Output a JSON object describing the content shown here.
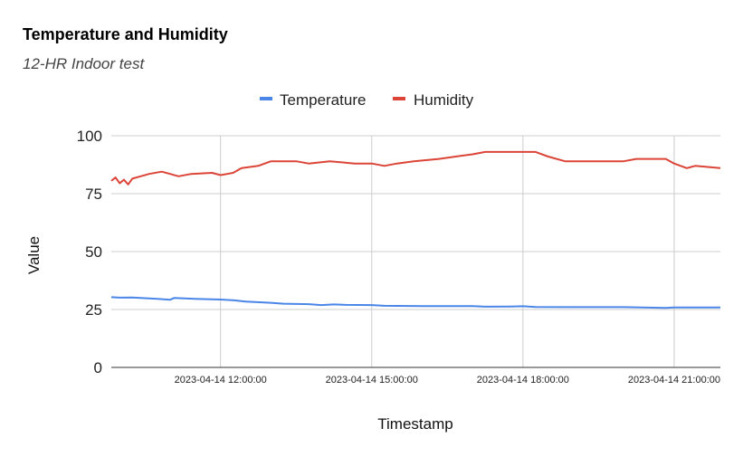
{
  "chart_data": {
    "type": "line",
    "title": "Temperature and Humidity",
    "subtitle": "12-HR Indoor test",
    "xlabel": "Timestamp",
    "ylabel": "Value",
    "ylim": [
      0,
      100
    ],
    "yticks": [
      0,
      25,
      50,
      75,
      100
    ],
    "xlim": [
      "2023-04-14 09:50:00",
      "2023-04-14 21:55:00"
    ],
    "xticks": [
      "2023-04-14 12:00:00",
      "2023-04-14 15:00:00",
      "2023-04-14 18:00:00",
      "2023-04-14 21:00:00"
    ],
    "grid": true,
    "legend_position": "top",
    "series": [
      {
        "name": "Temperature",
        "color": "#4a86e8",
        "points": [
          [
            "2023-04-14 09:50:00",
            30.3
          ],
          [
            "2023-04-14 10:00:00",
            30.1
          ],
          [
            "2023-04-14 10:15:00",
            30.2
          ],
          [
            "2023-04-14 10:30:00",
            29.9
          ],
          [
            "2023-04-14 10:45:00",
            29.6
          ],
          [
            "2023-04-14 11:00:00",
            29.2
          ],
          [
            "2023-04-14 11:05:00",
            30.0
          ],
          [
            "2023-04-14 11:30:00",
            29.6
          ],
          [
            "2023-04-14 12:00:00",
            29.3
          ],
          [
            "2023-04-14 12:15:00",
            29.0
          ],
          [
            "2023-04-14 12:30:00",
            28.4
          ],
          [
            "2023-04-14 13:00:00",
            27.9
          ],
          [
            "2023-04-14 13:15:00",
            27.5
          ],
          [
            "2023-04-14 13:45:00",
            27.3
          ],
          [
            "2023-04-14 14:00:00",
            26.9
          ],
          [
            "2023-04-14 14:15:00",
            27.2
          ],
          [
            "2023-04-14 14:30:00",
            27.0
          ],
          [
            "2023-04-14 15:00:00",
            26.9
          ],
          [
            "2023-04-14 15:15:00",
            26.6
          ],
          [
            "2023-04-14 16:00:00",
            26.5
          ],
          [
            "2023-04-14 17:00:00",
            26.5
          ],
          [
            "2023-04-14 17:15:00",
            26.2
          ],
          [
            "2023-04-14 17:45:00",
            26.3
          ],
          [
            "2023-04-14 18:00:00",
            26.4
          ],
          [
            "2023-04-14 18:15:00",
            26.1
          ],
          [
            "2023-04-14 19:00:00",
            26.0
          ],
          [
            "2023-04-14 20:00:00",
            26.0
          ],
          [
            "2023-04-14 20:50:00",
            25.7
          ],
          [
            "2023-04-14 21:00:00",
            25.9
          ],
          [
            "2023-04-14 21:55:00",
            25.9
          ]
        ]
      },
      {
        "name": "Humidity",
        "color": "#db4437",
        "points": [
          [
            "2023-04-14 09:50:00",
            80.5
          ],
          [
            "2023-04-14 09:55:00",
            82.0
          ],
          [
            "2023-04-14 10:00:00",
            79.5
          ],
          [
            "2023-04-14 10:05:00",
            81.0
          ],
          [
            "2023-04-14 10:10:00",
            79.0
          ],
          [
            "2023-04-14 10:15:00",
            81.5
          ],
          [
            "2023-04-14 10:25:00",
            82.5
          ],
          [
            "2023-04-14 10:35:00",
            83.5
          ],
          [
            "2023-04-14 10:50:00",
            84.5
          ],
          [
            "2023-04-14 11:00:00",
            83.5
          ],
          [
            "2023-04-14 11:10:00",
            82.5
          ],
          [
            "2023-04-14 11:25:00",
            83.5
          ],
          [
            "2023-04-14 11:50:00",
            84.0
          ],
          [
            "2023-04-14 12:00:00",
            83.0
          ],
          [
            "2023-04-14 12:15:00",
            84.0
          ],
          [
            "2023-04-14 12:25:00",
            86.0
          ],
          [
            "2023-04-14 12:45:00",
            87.0
          ],
          [
            "2023-04-14 13:00:00",
            89.0
          ],
          [
            "2023-04-14 13:30:00",
            89.0
          ],
          [
            "2023-04-14 13:45:00",
            88.0
          ],
          [
            "2023-04-14 14:10:00",
            89.0
          ],
          [
            "2023-04-14 14:40:00",
            88.0
          ],
          [
            "2023-04-14 15:00:00",
            88.0
          ],
          [
            "2023-04-14 15:15:00",
            87.0
          ],
          [
            "2023-04-14 15:30:00",
            88.0
          ],
          [
            "2023-04-14 15:50:00",
            89.0
          ],
          [
            "2023-04-14 16:20:00",
            90.0
          ],
          [
            "2023-04-14 16:40:00",
            91.0
          ],
          [
            "2023-04-14 17:00:00",
            92.0
          ],
          [
            "2023-04-14 17:15:00",
            93.0
          ],
          [
            "2023-04-14 18:15:00",
            93.0
          ],
          [
            "2023-04-14 18:30:00",
            91.0
          ],
          [
            "2023-04-14 18:50:00",
            89.0
          ],
          [
            "2023-04-14 20:00:00",
            89.0
          ],
          [
            "2023-04-14 20:15:00",
            90.0
          ],
          [
            "2023-04-14 20:50:00",
            90.0
          ],
          [
            "2023-04-14 21:00:00",
            88.0
          ],
          [
            "2023-04-14 21:15:00",
            86.0
          ],
          [
            "2023-04-14 21:25:00",
            87.0
          ],
          [
            "2023-04-14 21:55:00",
            86.0
          ]
        ]
      }
    ]
  }
}
